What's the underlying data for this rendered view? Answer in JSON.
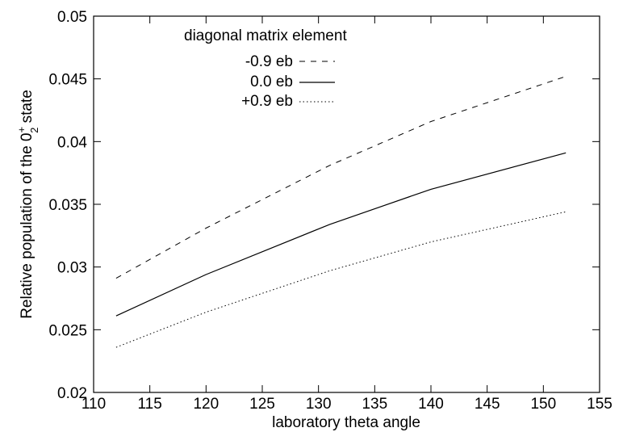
{
  "chart_data": {
    "type": "line",
    "xlabel": "laboratory theta angle",
    "ylabel_main": "Relative population of the 0",
    "ylabel_sup": "+",
    "ylabel_sub": "2",
    "ylabel_tail": " state",
    "xlim": [
      110,
      155
    ],
    "ylim": [
      0.02,
      0.05
    ],
    "xticks": [
      110,
      115,
      120,
      125,
      130,
      135,
      140,
      145,
      150,
      155
    ],
    "xtick_labels": [
      "110",
      "115",
      "120",
      "125",
      "130",
      "135",
      "140",
      "145",
      "150",
      "155"
    ],
    "yticks": [
      0.02,
      0.025,
      0.03,
      0.035,
      0.04,
      0.045,
      0.05
    ],
    "ytick_labels": [
      "0.02",
      "0.025",
      "0.03",
      "0.035",
      "0.04",
      "0.045",
      "0.05"
    ],
    "grid": false,
    "legend_title": "diagonal matrix element",
    "legend_position": "top-left",
    "x": [
      112,
      120,
      131,
      140,
      152
    ],
    "series": [
      {
        "name": "-0.9 eb",
        "style": "dashed",
        "values": [
          0.0291,
          0.0331,
          0.0381,
          0.0416,
          0.0452
        ]
      },
      {
        "name": "0.0 eb",
        "style": "solid",
        "values": [
          0.0261,
          0.0294,
          0.0334,
          0.0362,
          0.0391
        ]
      },
      {
        "name": "+0.9 eb",
        "style": "dotted",
        "values": [
          0.0236,
          0.0264,
          0.0297,
          0.032,
          0.0344
        ]
      }
    ]
  }
}
